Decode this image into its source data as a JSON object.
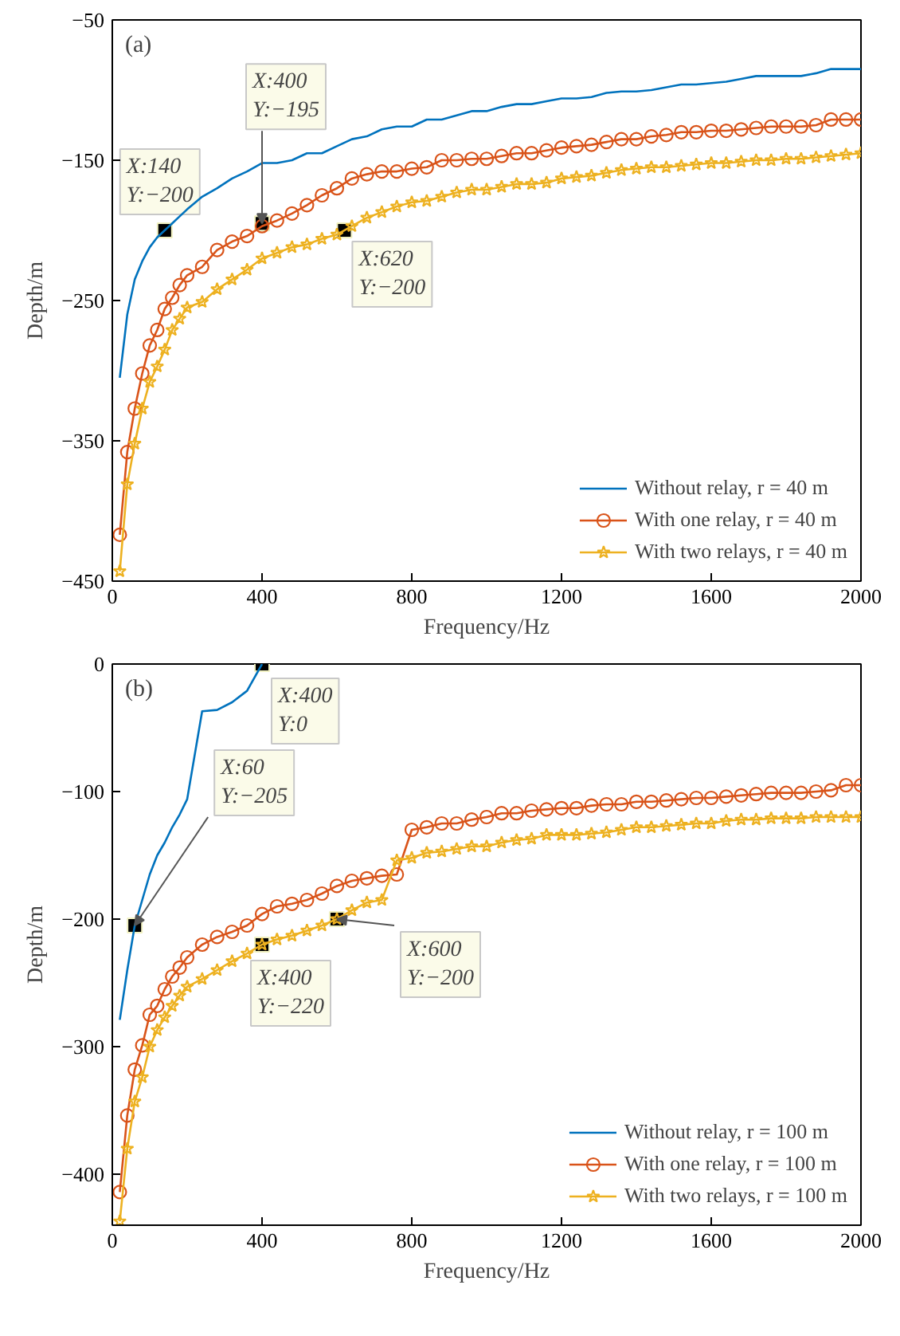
{
  "chart_data": [
    {
      "type": "line",
      "title": "(a)",
      "xlabel": "Frequency/Hz",
      "ylabel": "Depth/m",
      "x": [
        20,
        40,
        60,
        80,
        100,
        120,
        140,
        160,
        180,
        200,
        240,
        280,
        320,
        360,
        400,
        440,
        480,
        520,
        560,
        600,
        640,
        680,
        720,
        760,
        800,
        840,
        880,
        920,
        960,
        1000,
        1040,
        1080,
        1120,
        1160,
        1200,
        1240,
        1280,
        1320,
        1360,
        1400,
        1440,
        1480,
        1520,
        1560,
        1600,
        1640,
        1680,
        1720,
        1760,
        1800,
        1840,
        1880,
        1920,
        1960,
        2000
      ],
      "xlim": [
        0,
        2000
      ],
      "xticks": [
        0,
        400,
        800,
        1200,
        1600,
        2000
      ],
      "ylim": [
        -450,
        -50
      ],
      "yticks": [
        {
          "value": -450,
          "label": "−450"
        },
        {
          "value": -350,
          "label": "−350"
        },
        {
          "value": -250,
          "label": "−250"
        },
        {
          "value": -150,
          "label": "−150"
        },
        {
          "value": -50,
          "label": "−50"
        }
      ],
      "grid": false,
      "legend": "bottom right",
      "line_style": "solid",
      "series": [
        {
          "name": "Without relay, r = 40 m",
          "color": "#0072bd",
          "marker": "none",
          "values": [
            -305,
            -260,
            -235,
            -222,
            -212,
            -205,
            -200,
            -195,
            -190,
            -185,
            -176,
            -170,
            -163,
            -158,
            -152,
            -152,
            -150,
            -145,
            -145,
            -140,
            -135,
            -133,
            -128,
            -126,
            -126,
            -121,
            -121,
            -118,
            -115,
            -115,
            -112,
            -110,
            -110,
            -108,
            -106,
            -106,
            -105,
            -102,
            -101,
            -101,
            -100,
            -98,
            -96,
            -96,
            -95,
            -94,
            -92,
            -90,
            -90,
            -90,
            -90,
            -88,
            -85,
            -85,
            -85
          ]
        },
        {
          "name": "With one relay, r = 40 m",
          "color": "#d95319",
          "marker": "circle",
          "values": [
            -417,
            -358,
            -327,
            -302,
            -282,
            -271,
            -256,
            -248,
            -239,
            -232,
            -226,
            -214,
            -208,
            -204,
            -197,
            -193,
            -188,
            -182,
            -175,
            -170,
            -163,
            -160,
            -158,
            -158,
            -156,
            -155,
            -150,
            -150,
            -149,
            -149,
            -147,
            -145,
            -145,
            -143,
            -141,
            -140,
            -139,
            -137,
            -135,
            -135,
            -133,
            -132,
            -130,
            -130,
            -129,
            -129,
            -128,
            -127,
            -126,
            -126,
            -126,
            -125,
            -121,
            -121,
            -121
          ]
        },
        {
          "name": "With two relays, r = 40 m",
          "color": "#edb120",
          "marker": "star",
          "values": [
            -443,
            -381,
            -352,
            -327,
            -308,
            -297,
            -285,
            -271,
            -263,
            -255,
            -251,
            -242,
            -235,
            -228,
            -220,
            -216,
            -212,
            -210,
            -206,
            -203,
            -197,
            -191,
            -187,
            -183,
            -180,
            -179,
            -176,
            -173,
            -171,
            -171,
            -169,
            -167,
            -167,
            -166,
            -163,
            -162,
            -161,
            -159,
            -157,
            -156,
            -155,
            -155,
            -154,
            -153,
            -152,
            -152,
            -151,
            -150,
            -150,
            -149,
            -149,
            -148,
            -147,
            -146,
            -145
          ]
        }
      ],
      "annotations": [
        {
          "text": "X:140\nY:−200",
          "x": 140,
          "y": -200
        },
        {
          "text": "X:400\nY:−195",
          "x": 400,
          "y": -195
        },
        {
          "text": "X:620\nY:−200",
          "x": 620,
          "y": -200
        }
      ]
    },
    {
      "type": "line",
      "title": "(b)",
      "xlabel": "Frequency/Hz",
      "ylabel": "Depth/m",
      "x": [
        20,
        40,
        60,
        80,
        100,
        120,
        140,
        160,
        180,
        200,
        240,
        280,
        320,
        360,
        400,
        440,
        480,
        520,
        560,
        600,
        640,
        680,
        720,
        760,
        800,
        840,
        880,
        920,
        960,
        1000,
        1040,
        1080,
        1120,
        1160,
        1200,
        1240,
        1280,
        1320,
        1360,
        1400,
        1440,
        1480,
        1520,
        1560,
        1600,
        1640,
        1680,
        1720,
        1760,
        1800,
        1840,
        1880,
        1920,
        1960,
        2000
      ],
      "xlim": [
        0,
        2000
      ],
      "xticks": [
        0,
        400,
        800,
        1200,
        1600,
        2000
      ],
      "ylim": [
        -440,
        0
      ],
      "yticks": [
        {
          "value": -400,
          "label": "−400"
        },
        {
          "value": -300,
          "label": "−300"
        },
        {
          "value": -200,
          "label": "−200"
        },
        {
          "value": -100,
          "label": "−100"
        },
        0
      ],
      "grid": false,
      "legend": "bottom right",
      "line_style": "solid",
      "series": [
        {
          "name": "Without relay, r = 100 m",
          "color": "#0072bd",
          "marker": "none",
          "values": [
            -279,
            -240,
            -205,
            -185,
            -165,
            -150,
            -140,
            -128,
            -118,
            -106,
            -37,
            -36,
            -30,
            -21,
            0,
            null,
            null,
            null,
            null,
            null,
            null,
            null,
            null,
            null,
            null,
            null,
            null,
            null,
            null,
            null,
            null,
            null,
            null,
            null,
            null,
            null,
            null,
            null,
            null,
            null,
            null,
            null,
            null,
            null,
            null,
            null,
            null,
            null,
            null,
            null,
            null,
            null,
            null,
            null,
            null
          ]
        },
        {
          "name": "With one relay, r = 100 m",
          "color": "#d95319",
          "marker": "circle",
          "values": [
            -414,
            -354,
            -318,
            -299,
            -275,
            -268,
            -255,
            -245,
            -238,
            -230,
            -220,
            -214,
            -210,
            -205,
            -196,
            -190,
            -188,
            -185,
            -180,
            -174,
            -170,
            -168,
            -166,
            -165,
            -130,
            -128,
            -125,
            -125,
            -122,
            -120,
            -117,
            -117,
            -115,
            -114,
            -113,
            -113,
            -111,
            -110,
            -110,
            -108,
            -108,
            -107,
            -106,
            -105,
            -105,
            -104,
            -103,
            -102,
            -101,
            -101,
            -101,
            -100,
            -99,
            -95,
            -95
          ]
        },
        {
          "name": "With two relays, r = 100 m",
          "color": "#edb120",
          "marker": "star",
          "values": [
            -437,
            -380,
            -343,
            -324,
            -300,
            -287,
            -277,
            -268,
            -260,
            -253,
            -247,
            -240,
            -233,
            -227,
            -220,
            -216,
            -213,
            -209,
            -205,
            -200,
            -193,
            -187,
            -185,
            -154,
            -152,
            -148,
            -147,
            -145,
            -143,
            -143,
            -140,
            -138,
            -137,
            -134,
            -134,
            -134,
            -133,
            -132,
            -130,
            -128,
            -128,
            -127,
            -126,
            -125,
            -125,
            -123,
            -122,
            -122,
            -121,
            -121,
            -121,
            -120,
            -120,
            -120,
            -120
          ]
        }
      ],
      "annotations": [
        {
          "text": "X:400\nY:0",
          "x": 400,
          "y": 0
        },
        {
          "text": "X:60\nY:−205",
          "x": 60,
          "y": -205
        },
        {
          "text": "X:600\nY:−200",
          "x": 600,
          "y": -200
        },
        {
          "text": "X:400\nY:−220",
          "x": 400,
          "y": -220
        }
      ]
    }
  ]
}
